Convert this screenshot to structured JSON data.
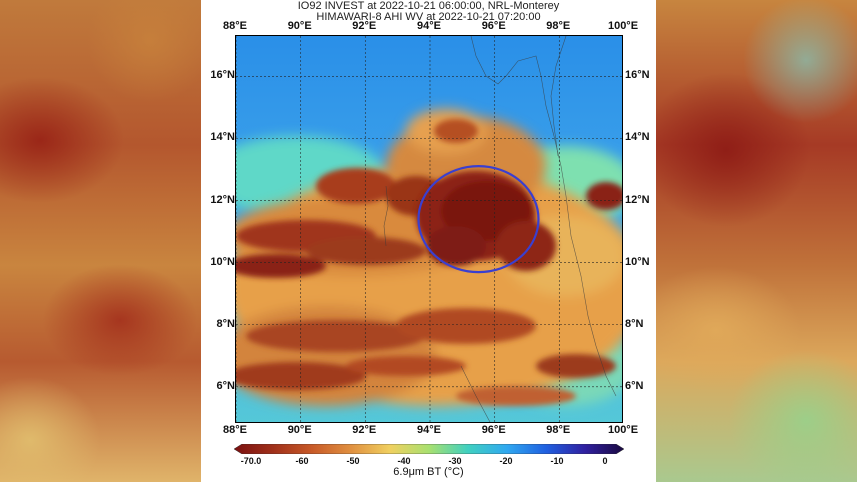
{
  "title": {
    "line1": "IO92 INVEST at 2022-10-21 06:00:00, NRL-Monterey",
    "line2": "HIMAWARI-8 AHI WV at 2022-10-21 07:20:00"
  },
  "map": {
    "lon_labels": [
      "88°E",
      "90°E",
      "92°E",
      "94°E",
      "96°E",
      "98°E",
      "100°E"
    ],
    "lat_labels": [
      "16°N",
      "14°N",
      "12°N",
      "10°N",
      "8°N",
      "6°N"
    ],
    "lon_range": [
      88,
      100
    ],
    "lat_range": [
      4.8,
      17.3
    ],
    "storm_circle": {
      "center_lon": 95.5,
      "center_lat": 11.4,
      "color": "#3a3fd0"
    }
  },
  "colorbar": {
    "ticks": [
      "-70.0",
      "-60",
      "-50",
      "-40",
      "-30",
      "-20",
      "-10",
      "0"
    ],
    "label": "6.9μm BT (°C)",
    "colors": [
      "#7a1010",
      "#a0301a",
      "#c85a28",
      "#e09040",
      "#f0d060",
      "#a8e070",
      "#40d0c0",
      "#30a8f0",
      "#2060e0",
      "#3020a0",
      "#1a0a40"
    ]
  }
}
